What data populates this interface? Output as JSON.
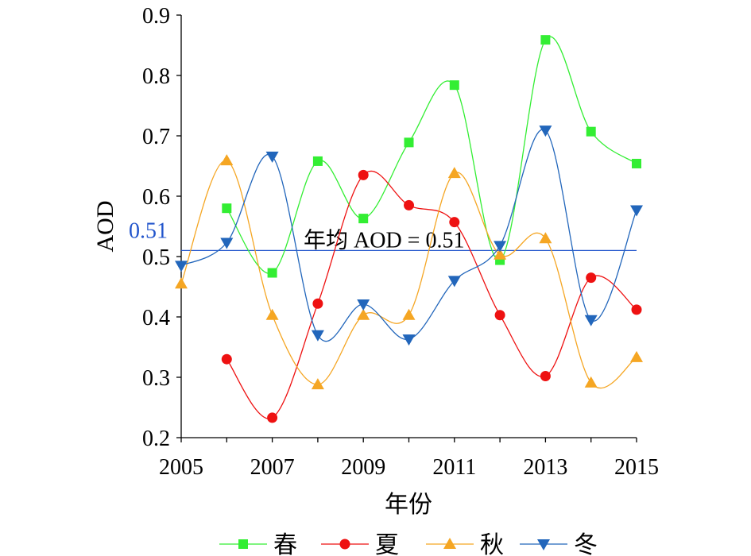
{
  "chart_data": {
    "type": "line",
    "title": "",
    "xlabel": "年份",
    "ylabel": "AOD",
    "xlim": [
      2005,
      2015
    ],
    "ylim": [
      0.2,
      0.9
    ],
    "x_ticks": [
      "2005",
      "2007",
      "2009",
      "2011",
      "2013",
      "2015"
    ],
    "y_ticks": [
      "0.2",
      "0.3",
      "0.4",
      "0.5",
      "0.6",
      "0.7",
      "0.8",
      "0.9"
    ],
    "grid": false,
    "smooth": true,
    "legend_position": "bottom",
    "series": [
      {
        "name": "春",
        "color": "#33ee33",
        "marker": "square",
        "x": [
          2006,
          2007,
          2008,
          2009,
          2010,
          2011,
          2012,
          2013,
          2014,
          2015
        ],
        "values": [
          0.58,
          0.473,
          0.658,
          0.563,
          0.689,
          0.784,
          0.494,
          0.859,
          0.707,
          0.654
        ]
      },
      {
        "name": "夏",
        "color": "#ee1111",
        "marker": "circle",
        "x": [
          2006,
          2007,
          2008,
          2009,
          2010,
          2011,
          2012,
          2013,
          2014,
          2015
        ],
        "values": [
          0.33,
          0.233,
          0.422,
          0.635,
          0.585,
          0.557,
          0.403,
          0.302,
          0.465,
          0.412
        ]
      },
      {
        "name": "秋",
        "color": "#f5a623",
        "marker": "triangle-up",
        "x": [
          2005,
          2006,
          2007,
          2008,
          2009,
          2010,
          2011,
          2012,
          2013,
          2014,
          2015
        ],
        "values": [
          0.455,
          0.659,
          0.403,
          0.288,
          0.403,
          0.403,
          0.638,
          0.503,
          0.53,
          0.291,
          0.333
        ]
      },
      {
        "name": "冬",
        "color": "#2266bb",
        "marker": "triangle-down",
        "x": [
          2005,
          2006,
          2007,
          2008,
          2009,
          2010,
          2011,
          2012,
          2013,
          2014,
          2015
        ],
        "values": [
          0.485,
          0.523,
          0.666,
          0.37,
          0.421,
          0.363,
          0.46,
          0.518,
          0.709,
          0.395,
          0.577
        ]
      }
    ],
    "reference_line": {
      "value": 0.51,
      "label": "0.51",
      "annotation": "年均 AOD = 0.51",
      "color": "#2255cc"
    }
  }
}
